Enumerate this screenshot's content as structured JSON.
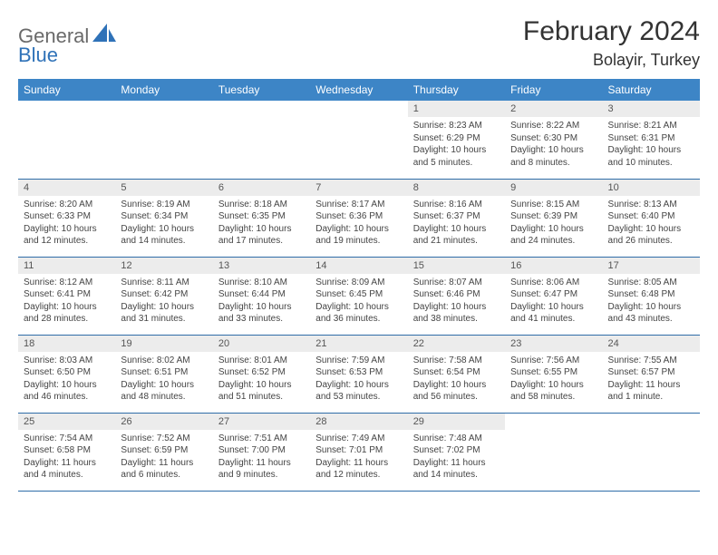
{
  "brand": {
    "part1": "General",
    "part2": "Blue"
  },
  "title": "February 2024",
  "location": "Bolayir, Turkey",
  "colors": {
    "header_bg": "#3d85c6",
    "header_text": "#ffffff",
    "daynum_bg": "#ececec",
    "border": "#2f6da8",
    "brand_gray": "#6a6a6a",
    "brand_blue": "#2f72b8"
  },
  "fonts": {
    "title_size": 30,
    "location_size": 18,
    "th_size": 12,
    "daynum_size": 11,
    "cell_size": 10
  },
  "weekdays": [
    "Sunday",
    "Monday",
    "Tuesday",
    "Wednesday",
    "Thursday",
    "Friday",
    "Saturday"
  ],
  "grid": {
    "leading_blanks": 4,
    "days_in_month": 29
  },
  "days": {
    "1": {
      "sunrise": "8:23 AM",
      "sunset": "6:29 PM",
      "daylight": "10 hours and 5 minutes."
    },
    "2": {
      "sunrise": "8:22 AM",
      "sunset": "6:30 PM",
      "daylight": "10 hours and 8 minutes."
    },
    "3": {
      "sunrise": "8:21 AM",
      "sunset": "6:31 PM",
      "daylight": "10 hours and 10 minutes."
    },
    "4": {
      "sunrise": "8:20 AM",
      "sunset": "6:33 PM",
      "daylight": "10 hours and 12 minutes."
    },
    "5": {
      "sunrise": "8:19 AM",
      "sunset": "6:34 PM",
      "daylight": "10 hours and 14 minutes."
    },
    "6": {
      "sunrise": "8:18 AM",
      "sunset": "6:35 PM",
      "daylight": "10 hours and 17 minutes."
    },
    "7": {
      "sunrise": "8:17 AM",
      "sunset": "6:36 PM",
      "daylight": "10 hours and 19 minutes."
    },
    "8": {
      "sunrise": "8:16 AM",
      "sunset": "6:37 PM",
      "daylight": "10 hours and 21 minutes."
    },
    "9": {
      "sunrise": "8:15 AM",
      "sunset": "6:39 PM",
      "daylight": "10 hours and 24 minutes."
    },
    "10": {
      "sunrise": "8:13 AM",
      "sunset": "6:40 PM",
      "daylight": "10 hours and 26 minutes."
    },
    "11": {
      "sunrise": "8:12 AM",
      "sunset": "6:41 PM",
      "daylight": "10 hours and 28 minutes."
    },
    "12": {
      "sunrise": "8:11 AM",
      "sunset": "6:42 PM",
      "daylight": "10 hours and 31 minutes."
    },
    "13": {
      "sunrise": "8:10 AM",
      "sunset": "6:44 PM",
      "daylight": "10 hours and 33 minutes."
    },
    "14": {
      "sunrise": "8:09 AM",
      "sunset": "6:45 PM",
      "daylight": "10 hours and 36 minutes."
    },
    "15": {
      "sunrise": "8:07 AM",
      "sunset": "6:46 PM",
      "daylight": "10 hours and 38 minutes."
    },
    "16": {
      "sunrise": "8:06 AM",
      "sunset": "6:47 PM",
      "daylight": "10 hours and 41 minutes."
    },
    "17": {
      "sunrise": "8:05 AM",
      "sunset": "6:48 PM",
      "daylight": "10 hours and 43 minutes."
    },
    "18": {
      "sunrise": "8:03 AM",
      "sunset": "6:50 PM",
      "daylight": "10 hours and 46 minutes."
    },
    "19": {
      "sunrise": "8:02 AM",
      "sunset": "6:51 PM",
      "daylight": "10 hours and 48 minutes."
    },
    "20": {
      "sunrise": "8:01 AM",
      "sunset": "6:52 PM",
      "daylight": "10 hours and 51 minutes."
    },
    "21": {
      "sunrise": "7:59 AM",
      "sunset": "6:53 PM",
      "daylight": "10 hours and 53 minutes."
    },
    "22": {
      "sunrise": "7:58 AM",
      "sunset": "6:54 PM",
      "daylight": "10 hours and 56 minutes."
    },
    "23": {
      "sunrise": "7:56 AM",
      "sunset": "6:55 PM",
      "daylight": "10 hours and 58 minutes."
    },
    "24": {
      "sunrise": "7:55 AM",
      "sunset": "6:57 PM",
      "daylight": "11 hours and 1 minute."
    },
    "25": {
      "sunrise": "7:54 AM",
      "sunset": "6:58 PM",
      "daylight": "11 hours and 4 minutes."
    },
    "26": {
      "sunrise": "7:52 AM",
      "sunset": "6:59 PM",
      "daylight": "11 hours and 6 minutes."
    },
    "27": {
      "sunrise": "7:51 AM",
      "sunset": "7:00 PM",
      "daylight": "11 hours and 9 minutes."
    },
    "28": {
      "sunrise": "7:49 AM",
      "sunset": "7:01 PM",
      "daylight": "11 hours and 12 minutes."
    },
    "29": {
      "sunrise": "7:48 AM",
      "sunset": "7:02 PM",
      "daylight": "11 hours and 14 minutes."
    }
  },
  "labels": {
    "sunrise": "Sunrise:",
    "sunset": "Sunset:",
    "daylight": "Daylight:"
  }
}
